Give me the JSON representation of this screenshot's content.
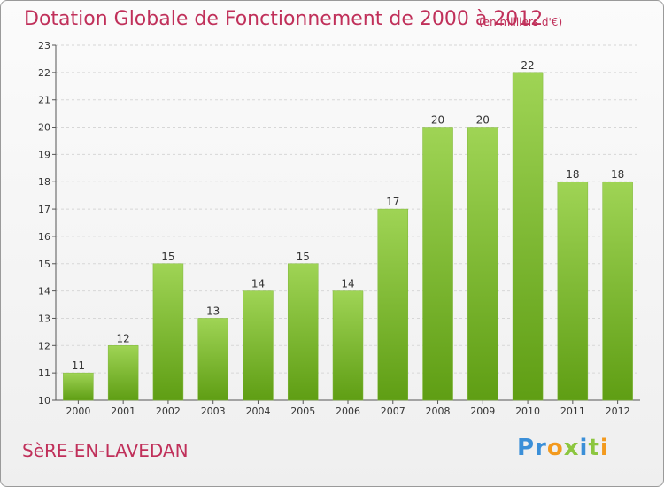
{
  "header": {
    "title": "Dotation Globale de Fonctionnement de 2000 à 2012",
    "unit": "(en milliers d'€)"
  },
  "footer": {
    "commune": "SèRE-EN-LAVEDAN",
    "logo": "Proxiti"
  },
  "colors": {
    "title": "#c0305a",
    "bar_top": "#9fd455",
    "bar_bottom": "#5f9e14"
  },
  "chart_data": {
    "type": "bar",
    "title": "Dotation Globale de Fonctionnement de 2000 à 2012",
    "subtitle": "(en milliers d'€)",
    "xlabel": "",
    "ylabel": "",
    "categories": [
      "2000",
      "2001",
      "2002",
      "2003",
      "2004",
      "2005",
      "2006",
      "2007",
      "2008",
      "2009",
      "2010",
      "2011",
      "2012"
    ],
    "values": [
      11,
      12,
      15,
      13,
      14,
      15,
      14,
      17,
      20,
      20,
      22,
      18,
      18
    ],
    "ylim": [
      10,
      23
    ],
    "yticks": [
      10,
      11,
      12,
      13,
      14,
      15,
      16,
      17,
      18,
      19,
      20,
      21,
      22,
      23
    ],
    "grid": true
  }
}
